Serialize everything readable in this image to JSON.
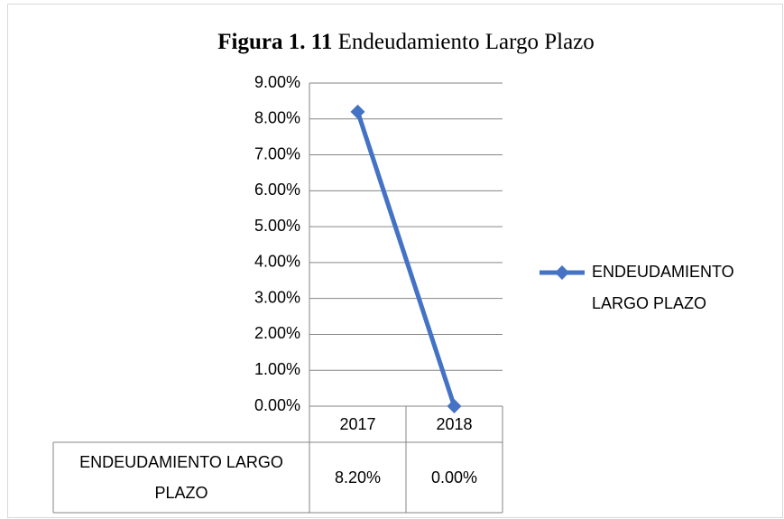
{
  "chart_data": {
    "type": "line",
    "title_prefix": "Figura 1. 11",
    "title": "Endeudamiento Largo Plazo",
    "categories": [
      "2017",
      "2018"
    ],
    "series": [
      {
        "name": "ENDEUDAMIENTO LARGO PLAZO",
        "color": "#4472c4",
        "values": [
          8.2,
          0
        ],
        "value_labels": [
          "8.20%",
          "0.00%"
        ]
      }
    ],
    "ylim": [
      0,
      9
    ],
    "yticks": [
      {
        "value": 0,
        "label": "0.00%"
      },
      {
        "value": 1,
        "label": "1.00%"
      },
      {
        "value": 2,
        "label": "2.00%"
      },
      {
        "value": 3,
        "label": "3.00%"
      },
      {
        "value": 4,
        "label": "4.00%"
      },
      {
        "value": 5,
        "label": "5.00%"
      },
      {
        "value": 6,
        "label": "6.00%"
      },
      {
        "value": 7,
        "label": "7.00%"
      },
      {
        "value": 8,
        "label": "8.00%"
      },
      {
        "value": 9,
        "label": "9.00%"
      }
    ],
    "grid": true,
    "legend": "right",
    "data_table": true
  }
}
